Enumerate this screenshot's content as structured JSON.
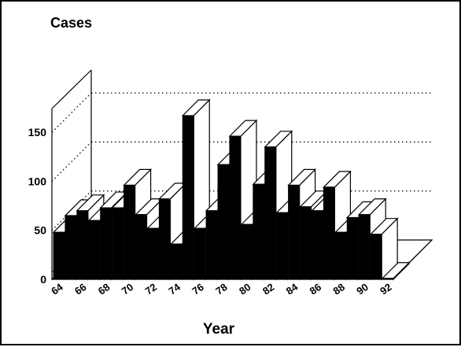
{
  "chart_data": {
    "type": "bar",
    "style": "3d-column",
    "ylabel": "Cases",
    "xlabel": "Year",
    "ylim": [
      0,
      175
    ],
    "yticks": [
      0,
      50,
      100,
      150
    ],
    "grid": true,
    "x": [
      64,
      65,
      66,
      67,
      68,
      69,
      70,
      71,
      72,
      73,
      74,
      75,
      76,
      77,
      78,
      79,
      80,
      81,
      82,
      83,
      84,
      85,
      86,
      87,
      88,
      89,
      90,
      91,
      92
    ],
    "xtick_labels": [
      "64",
      "66",
      "68",
      "70",
      "72",
      "74",
      "76",
      "78",
      "80",
      "82",
      "84",
      "86",
      "88",
      "90",
      "92"
    ],
    "values": [
      48,
      65,
      70,
      60,
      73,
      73,
      96,
      66,
      52,
      82,
      36,
      167,
      52,
      70,
      117,
      146,
      56,
      97,
      135,
      68,
      96,
      74,
      70,
      94,
      48,
      63,
      66,
      46,
      1
    ]
  },
  "colors": {
    "bar_front": "#000000",
    "bar_top": "#ffffff",
    "bar_side": "#ffffff",
    "axis": "#000000"
  }
}
